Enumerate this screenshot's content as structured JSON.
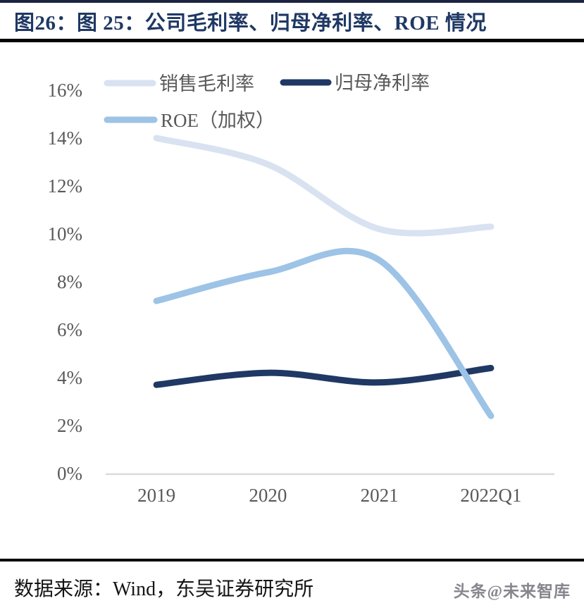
{
  "header": {
    "title": "图26：图 25：公司毛利率、归母净利率、ROE 情况"
  },
  "footer": {
    "source": "数据来源：Wind，东吴证券研究所",
    "watermark": "头条@未来智库"
  },
  "colors": {
    "title_text": "#1f3864",
    "rule_black": "#050505",
    "top_border": "#1b2440",
    "axis_text": "#595959",
    "axis_line": "#d9d9d9",
    "gross_margin_line": "#d9e2f1",
    "net_margin_line": "#1f3864",
    "roe_line": "#9dc3e6",
    "source_text": "#141414",
    "watermark_text": "#86868e"
  },
  "chart_data": {
    "type": "line",
    "smoothed": true,
    "title": "",
    "categories": [
      "2019",
      "2020",
      "2021",
      "2022Q1"
    ],
    "series": [
      {
        "key": "gross-margin",
        "name": "销售毛利率",
        "values": [
          14.0,
          12.9,
          10.2,
          10.3
        ],
        "color_key": "gross_margin_line"
      },
      {
        "key": "net-margin",
        "name": "归母净利率",
        "values": [
          3.7,
          4.2,
          3.8,
          4.4
        ],
        "color_key": "net_margin_line"
      },
      {
        "key": "roe",
        "name": "ROE（加权）",
        "values": [
          7.2,
          8.4,
          8.9,
          2.4
        ],
        "color_key": "roe_line"
      }
    ],
    "ylim": [
      0,
      16
    ],
    "ytick_step": 2,
    "ytick_labels": [
      "0%",
      "2%",
      "4%",
      "6%",
      "8%",
      "10%",
      "12%",
      "14%",
      "16%"
    ],
    "grid": false,
    "legend_position": "top-left",
    "legend_rows": [
      [
        "gross-margin",
        "net-margin"
      ],
      [
        "roe"
      ]
    ]
  }
}
